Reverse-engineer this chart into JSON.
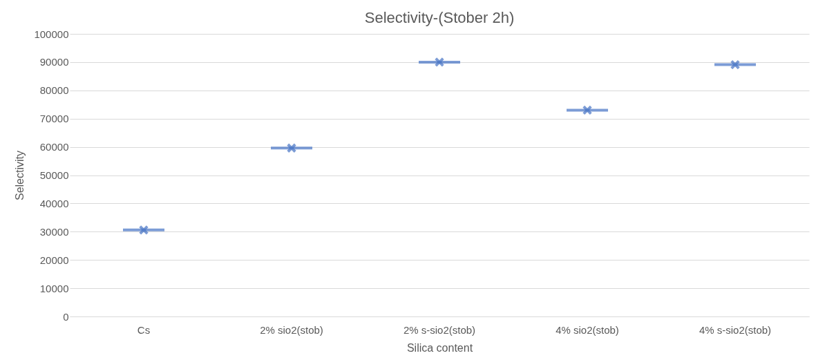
{
  "chart_data": {
    "type": "box",
    "title": "Selectivity-(Stober 2h)",
    "xlabel": "Silica content",
    "ylabel": "Selectivity",
    "categories": [
      "Cs",
      "2% sio2(stob)",
      "2% s-sio2(stob)",
      "4% sio2(stob)",
      "4% s-sio2(stob)"
    ],
    "boxes": [
      {
        "low": 30600,
        "q1": 30600,
        "median": 30600,
        "q3": 30600,
        "high": 30600,
        "mean": 30600
      },
      {
        "low": 59600,
        "q1": 59600,
        "median": 59600,
        "q3": 59600,
        "high": 59600,
        "mean": 59600
      },
      {
        "low": 90000,
        "q1": 90000,
        "median": 90000,
        "q3": 90000,
        "high": 90000,
        "mean": 90000
      },
      {
        "low": 73000,
        "q1": 73000,
        "median": 73000,
        "q3": 73000,
        "high": 73000,
        "mean": 73000
      },
      {
        "low": 89100,
        "q1": 89100,
        "median": 89100,
        "q3": 89100,
        "high": 89100,
        "mean": 89100
      }
    ],
    "color": "#4472c4",
    "ylim": [
      0,
      100000
    ],
    "yticks": [
      0,
      10000,
      20000,
      30000,
      40000,
      50000,
      60000,
      70000,
      80000,
      90000,
      100000
    ],
    "grid": "y",
    "marker": "cross"
  }
}
